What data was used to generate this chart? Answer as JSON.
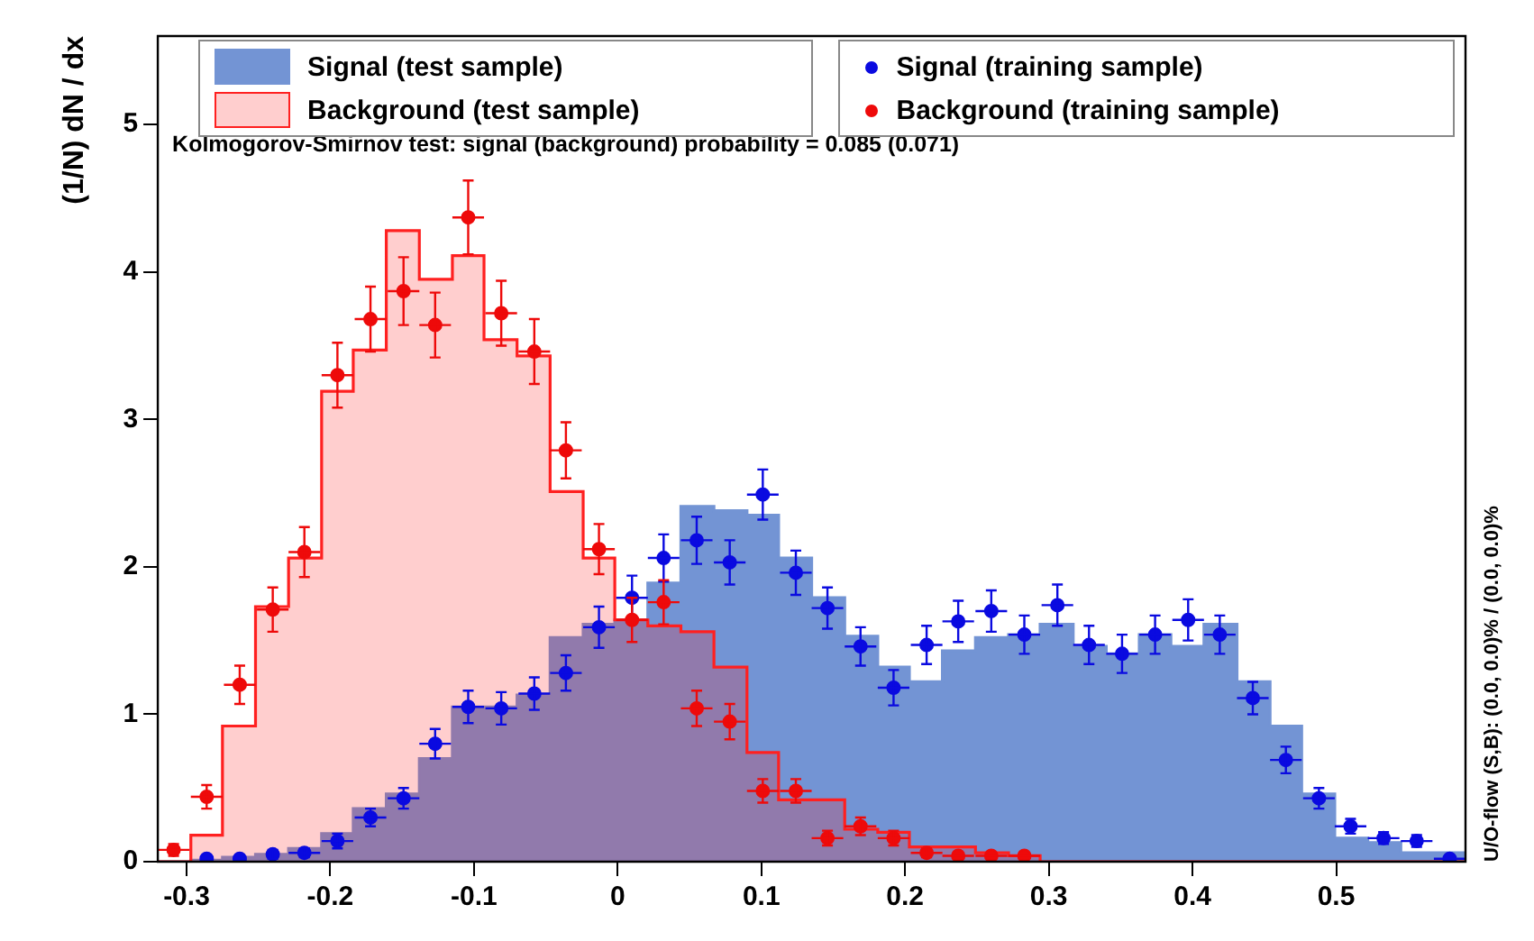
{
  "chart_data": {
    "type": "histogram",
    "ylabel": "(1/N) dN / dx",
    "annotations": [
      "Kolmogorov-Smirnov test: signal (background) probability = 0.085 (0.071)",
      "U/O-flow (S,B): (0.0, 0.0)% / (0.0, 0.0)%"
    ],
    "bins": [
      -0.32,
      -0.297,
      -0.275,
      -0.252,
      -0.229,
      -0.206,
      -0.184,
      -0.161,
      -0.138,
      -0.115,
      -0.093,
      -0.07,
      -0.047,
      -0.024,
      -0.002,
      0.021,
      0.044,
      0.067,
      0.09,
      0.112,
      0.135,
      0.158,
      0.181,
      0.203,
      0.226,
      0.249,
      0.272,
      0.294,
      0.317,
      0.34,
      0.363,
      0.385,
      0.408,
      0.431,
      0.454,
      0.476,
      0.499,
      0.522,
      0.545,
      0.567,
      0.59
    ],
    "xlim": [
      -0.32,
      0.59
    ],
    "xticks": [
      -0.3,
      -0.2,
      -0.1,
      0,
      0.1,
      0.2,
      0.3,
      0.4,
      0.5
    ],
    "ylim": [
      0,
      5.6
    ],
    "yticks": [
      0,
      1,
      2,
      3,
      4,
      5
    ],
    "grid": false,
    "legend": "top",
    "marker": "circle",
    "series": [
      {
        "name": "Signal (test sample)",
        "color": "#7394d4",
        "values": [
          0,
          0.01,
          0.03,
          0.05,
          0.09,
          0.19,
          0.36,
          0.46,
          0.7,
          1.05,
          1.05,
          1.13,
          1.52,
          1.61,
          1.64,
          1.89,
          2.41,
          2.38,
          2.35,
          2.06,
          1.79,
          1.53,
          1.32,
          1.22,
          1.43,
          1.52,
          1.54,
          1.61,
          1.46,
          1.41,
          1.54,
          1.46,
          1.61,
          1.22,
          0.92,
          0.46,
          0.16,
          0.13,
          0.06,
          0.06
        ]
      },
      {
        "name": "Background (test sample)",
        "color": "#ff2020",
        "values": [
          0,
          0.18,
          0.92,
          1.73,
          2.06,
          3.19,
          3.47,
          4.28,
          3.95,
          4.11,
          3.54,
          3.43,
          2.51,
          2.06,
          1.64,
          1.6,
          1.56,
          1.32,
          0.74,
          0.42,
          0.42,
          0.22,
          0.2,
          0.1,
          0.1,
          0.06,
          0.04,
          0,
          0,
          0,
          0,
          0,
          0,
          0,
          0,
          0,
          0,
          0,
          0,
          0
        ]
      },
      {
        "name": "Signal (training sample)",
        "type": "scatter",
        "color": "#0a0ae0",
        "x": [
          -0.286,
          -0.263,
          -0.24,
          -0.218,
          -0.195,
          -0.172,
          -0.149,
          -0.127,
          -0.104,
          -0.081,
          -0.058,
          -0.036,
          -0.013,
          0.01,
          0.032,
          0.055,
          0.078,
          0.101,
          0.124,
          0.146,
          0.169,
          0.192,
          0.215,
          0.237,
          0.26,
          0.283,
          0.306,
          0.328,
          0.351,
          0.374,
          0.397,
          0.419,
          0.442,
          0.465,
          0.488,
          0.51,
          0.533,
          0.556,
          0.579
        ],
        "values": [
          0.02,
          0.02,
          0.05,
          0.06,
          0.14,
          0.3,
          0.43,
          0.8,
          1.05,
          1.04,
          1.14,
          1.28,
          1.59,
          1.79,
          2.06,
          2.18,
          2.03,
          2.49,
          1.96,
          1.72,
          1.46,
          1.18,
          1.47,
          1.63,
          1.7,
          1.54,
          1.74,
          1.47,
          1.41,
          1.54,
          1.64,
          1.54,
          1.11,
          0.69,
          0.43,
          0.24,
          0.16,
          0.14,
          0.02
        ],
        "errors": [
          null,
          null,
          0.03,
          0.03,
          0.05,
          0.06,
          0.07,
          0.1,
          0.11,
          0.11,
          0.11,
          0.12,
          0.14,
          0.15,
          0.16,
          0.16,
          0.15,
          0.17,
          0.15,
          0.14,
          0.13,
          0.12,
          0.13,
          0.14,
          0.14,
          0.13,
          0.14,
          0.13,
          0.13,
          0.13,
          0.14,
          0.13,
          0.11,
          0.09,
          0.07,
          0.05,
          0.04,
          0.04,
          null
        ],
        "xerrors": [
          null,
          null,
          null,
          0.011,
          0.011,
          0.011,
          0.011,
          0.011,
          0.011,
          0.011,
          0.011,
          0.011,
          0.011,
          0.011,
          0.011,
          0.011,
          0.011,
          0.011,
          0.011,
          0.011,
          0.011,
          0.011,
          0.011,
          0.011,
          0.011,
          0.011,
          0.011,
          0.011,
          0.011,
          0.011,
          0.011,
          0.011,
          0.011,
          0.011,
          0.011,
          0.011,
          0.011,
          0.011,
          0.011
        ]
      },
      {
        "name": "Background (training sample)",
        "type": "scatter",
        "color": "#ee0a0a",
        "x": [
          -0.309,
          -0.286,
          -0.263,
          -0.24,
          -0.218,
          -0.195,
          -0.172,
          -0.149,
          -0.127,
          -0.104,
          -0.081,
          -0.058,
          -0.036,
          -0.013,
          0.01,
          0.032,
          0.055,
          0.078,
          0.101,
          0.124,
          0.146,
          0.169,
          0.192,
          0.215,
          0.237,
          0.26,
          0.283
        ],
        "values": [
          0.08,
          0.44,
          1.2,
          1.71,
          2.1,
          3.3,
          3.68,
          3.87,
          3.64,
          4.37,
          3.72,
          3.46,
          2.79,
          2.12,
          1.64,
          1.76,
          1.04,
          0.95,
          0.48,
          0.48,
          0.16,
          0.24,
          0.16,
          0.06,
          0.04,
          0.04,
          0.04
        ],
        "errors": [
          0.04,
          0.08,
          0.13,
          0.15,
          0.17,
          0.22,
          0.22,
          0.23,
          0.22,
          0.25,
          0.22,
          0.22,
          0.19,
          0.17,
          0.15,
          0.15,
          0.12,
          0.12,
          0.08,
          0.08,
          0.05,
          0.06,
          0.05,
          0.03,
          null,
          null,
          null
        ],
        "xerrors": [
          0.011,
          0.011,
          0.011,
          0.011,
          0.011,
          0.011,
          0.011,
          0.011,
          0.011,
          0.011,
          0.011,
          0.011,
          0.011,
          0.011,
          0.011,
          0.011,
          0.011,
          0.011,
          0.011,
          0.011,
          0.011,
          0.011,
          0.011,
          0.011,
          0.011,
          0.011,
          0.011
        ]
      }
    ]
  }
}
